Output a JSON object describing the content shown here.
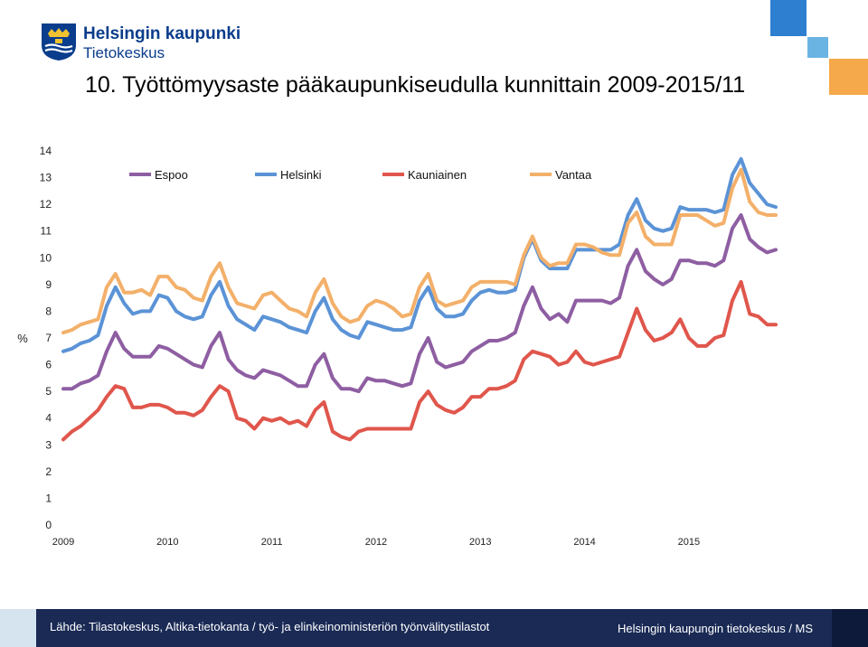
{
  "header": {
    "brand_line1": "Helsingin kaupunki",
    "brand_line2": "Tietokeskus",
    "title": "10. Työttömyysaste pääkaupunkiseudulla kunnittain 2009-2015/11"
  },
  "footer": {
    "source": "Lähde: Tilastokeskus, Altika-tietokanta  /  työ- ja elinkeinoministeriön työnvälitystilastot",
    "credit": "Helsingin kaupungin tietokeskus / MS"
  },
  "colors": {
    "brand_blue": "#0a3d8c",
    "footer_dark": "#1a2a55",
    "footer_light": "#d6e4f0",
    "deco_blue": "#2f7fd0",
    "deco_light": "#6ab4e4",
    "deco_orange": "#f5a94a"
  },
  "chart_data": {
    "type": "line",
    "title": "",
    "xlabel": "",
    "ylabel": "%",
    "ylim": [
      0,
      14
    ],
    "yticks": [
      "0",
      "1",
      "2",
      "3",
      "4",
      "5",
      "6",
      "7",
      "8",
      "9",
      "10",
      "11",
      "12",
      "13",
      "14"
    ],
    "xtick_labels": [
      "2009",
      "2010",
      "2011",
      "2012",
      "2013",
      "2014",
      "2015"
    ],
    "grid": false,
    "legend_position": "top",
    "x_start": "2009-01",
    "x_end": "2015-11",
    "series": [
      {
        "name": "Espoo",
        "color": "#8e5ea2",
        "values": [
          5.1,
          5.1,
          5.3,
          5.4,
          5.6,
          6.5,
          7.2,
          6.6,
          6.3,
          6.3,
          6.3,
          6.7,
          6.6,
          6.4,
          6.2,
          6.0,
          5.9,
          6.7,
          7.2,
          6.2,
          5.8,
          5.6,
          5.5,
          5.8,
          5.7,
          5.6,
          5.4,
          5.2,
          5.2,
          6.0,
          6.4,
          5.5,
          5.1,
          5.1,
          5.0,
          5.5,
          5.4,
          5.4,
          5.3,
          5.2,
          5.3,
          6.4,
          7.0,
          6.1,
          5.9,
          6.0,
          6.1,
          6.5,
          6.7,
          6.9,
          6.9,
          7.0,
          7.2,
          8.2,
          8.9,
          8.1,
          7.7,
          7.9,
          7.6,
          8.4,
          8.4,
          8.4,
          8.4,
          8.3,
          8.5,
          9.7,
          10.3,
          9.5,
          9.2,
          9.0,
          9.2,
          9.9,
          9.9,
          9.8,
          9.8,
          9.7,
          9.9,
          11.1,
          11.6,
          10.7,
          10.4,
          10.2,
          10.3
        ]
      },
      {
        "name": "Helsinki",
        "color": "#5b93d6",
        "values": [
          6.5,
          6.6,
          6.8,
          6.9,
          7.1,
          8.2,
          8.9,
          8.3,
          7.9,
          8.0,
          8.0,
          8.6,
          8.5,
          8.0,
          7.8,
          7.7,
          7.8,
          8.6,
          9.1,
          8.2,
          7.7,
          7.5,
          7.3,
          7.8,
          7.7,
          7.6,
          7.4,
          7.3,
          7.2,
          8.0,
          8.5,
          7.7,
          7.3,
          7.1,
          7.0,
          7.6,
          7.5,
          7.4,
          7.3,
          7.3,
          7.4,
          8.4,
          8.9,
          8.1,
          7.8,
          7.8,
          7.9,
          8.4,
          8.7,
          8.8,
          8.7,
          8.7,
          8.8,
          10.0,
          10.7,
          9.9,
          9.6,
          9.6,
          9.6,
          10.3,
          10.3,
          10.3,
          10.3,
          10.3,
          10.5,
          11.6,
          12.2,
          11.4,
          11.1,
          11.0,
          11.1,
          11.9,
          11.8,
          11.8,
          11.8,
          11.7,
          11.8,
          13.1,
          13.7,
          12.8,
          12.4,
          12.0,
          11.9
        ]
      },
      {
        "name": "Kauniainen",
        "color": "#e0564c",
        "values": [
          3.2,
          3.5,
          3.7,
          4.0,
          4.3,
          4.8,
          5.2,
          5.1,
          4.4,
          4.4,
          4.5,
          4.5,
          4.4,
          4.2,
          4.2,
          4.1,
          4.3,
          4.8,
          5.2,
          5.0,
          4.0,
          3.9,
          3.6,
          4.0,
          3.9,
          4.0,
          3.8,
          3.9,
          3.7,
          4.3,
          4.6,
          3.5,
          3.3,
          3.2,
          3.5,
          3.6,
          3.6,
          3.6,
          3.6,
          3.6,
          3.6,
          4.6,
          5.0,
          4.5,
          4.3,
          4.2,
          4.4,
          4.8,
          4.8,
          5.1,
          5.1,
          5.2,
          5.4,
          6.2,
          6.5,
          6.4,
          6.3,
          6.0,
          6.1,
          6.5,
          6.1,
          6.0,
          6.1,
          6.2,
          6.3,
          7.2,
          8.1,
          7.3,
          6.9,
          7.0,
          7.2,
          7.7,
          7.0,
          6.7,
          6.7,
          7.0,
          7.1,
          8.4,
          9.1,
          7.9,
          7.8,
          7.5,
          7.5
        ]
      },
      {
        "name": "Vantaa",
        "color": "#f3b06a",
        "values": [
          7.2,
          7.3,
          7.5,
          7.6,
          7.7,
          8.9,
          9.4,
          8.7,
          8.7,
          8.8,
          8.6,
          9.3,
          9.3,
          8.9,
          8.8,
          8.5,
          8.4,
          9.3,
          9.8,
          8.9,
          8.3,
          8.2,
          8.1,
          8.6,
          8.7,
          8.4,
          8.1,
          8.0,
          7.8,
          8.7,
          9.2,
          8.3,
          7.8,
          7.6,
          7.7,
          8.2,
          8.4,
          8.3,
          8.1,
          7.8,
          7.9,
          8.9,
          9.4,
          8.4,
          8.2,
          8.3,
          8.4,
          8.9,
          9.1,
          9.1,
          9.1,
          9.1,
          9.0,
          10.1,
          10.8,
          10.0,
          9.7,
          9.8,
          9.8,
          10.5,
          10.5,
          10.4,
          10.2,
          10.1,
          10.1,
          11.3,
          11.7,
          10.8,
          10.5,
          10.5,
          10.5,
          11.6,
          11.6,
          11.6,
          11.4,
          11.2,
          11.3,
          12.6,
          13.3,
          12.1,
          11.7,
          11.6,
          11.6
        ]
      }
    ]
  }
}
